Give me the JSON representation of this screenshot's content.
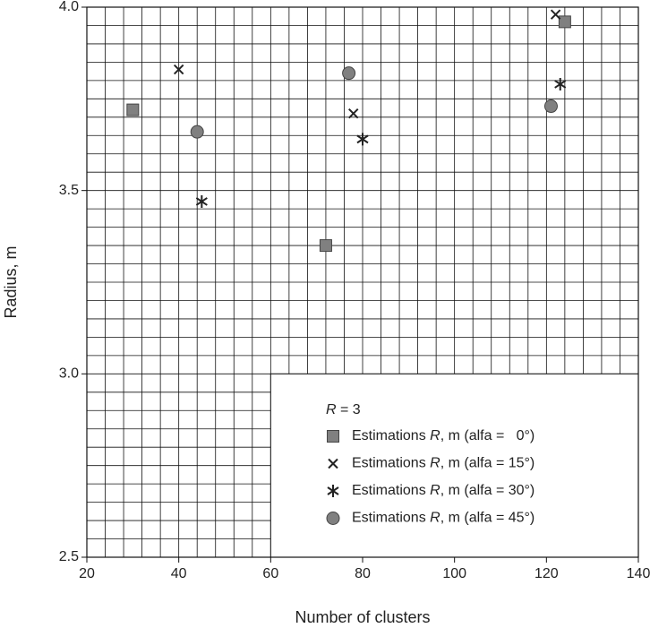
{
  "chart_data": {
    "type": "scatter",
    "xlabel": "Number of clusters",
    "ylabel": "Radius, m",
    "xlim": [
      20,
      140
    ],
    "xticks": [
      20,
      40,
      60,
      80,
      100,
      120,
      140
    ],
    "ylim": [
      2.5,
      4.0
    ],
    "yticks": [
      {
        "value": 2.5,
        "label": "2.5"
      },
      {
        "value": 3.0,
        "label": "3.0"
      },
      {
        "value": 3.5,
        "label": "3.5"
      },
      {
        "value": 4.0,
        "label": "4.0"
      }
    ],
    "grid": {
      "x_step": 4,
      "y_step": 0.05
    },
    "legend_position": "lower right",
    "legend_title": "R = 3",
    "series": [
      {
        "name": "Estimations R, m (alfa =   0°)",
        "marker": "square",
        "color": "#808080",
        "x": [
          30,
          72,
          124
        ],
        "values": [
          3.72,
          3.35,
          3.96
        ]
      },
      {
        "name": "Estimations R, m (alfa = 15°)",
        "marker": "x",
        "color": "#222222",
        "x": [
          40,
          78,
          122
        ],
        "values": [
          3.83,
          3.71,
          3.98
        ]
      },
      {
        "name": "Estimations R, m (alfa = 30°)",
        "marker": "asterisk",
        "color": "#222222",
        "x": [
          45,
          80,
          123
        ],
        "values": [
          3.47,
          3.64,
          3.79
        ]
      },
      {
        "name": "Estimations R, m (alfa = 45°)",
        "marker": "circle",
        "color": "#808080",
        "x": [
          44,
          77,
          121
        ],
        "values": [
          3.66,
          3.82,
          3.73
        ]
      }
    ]
  }
}
